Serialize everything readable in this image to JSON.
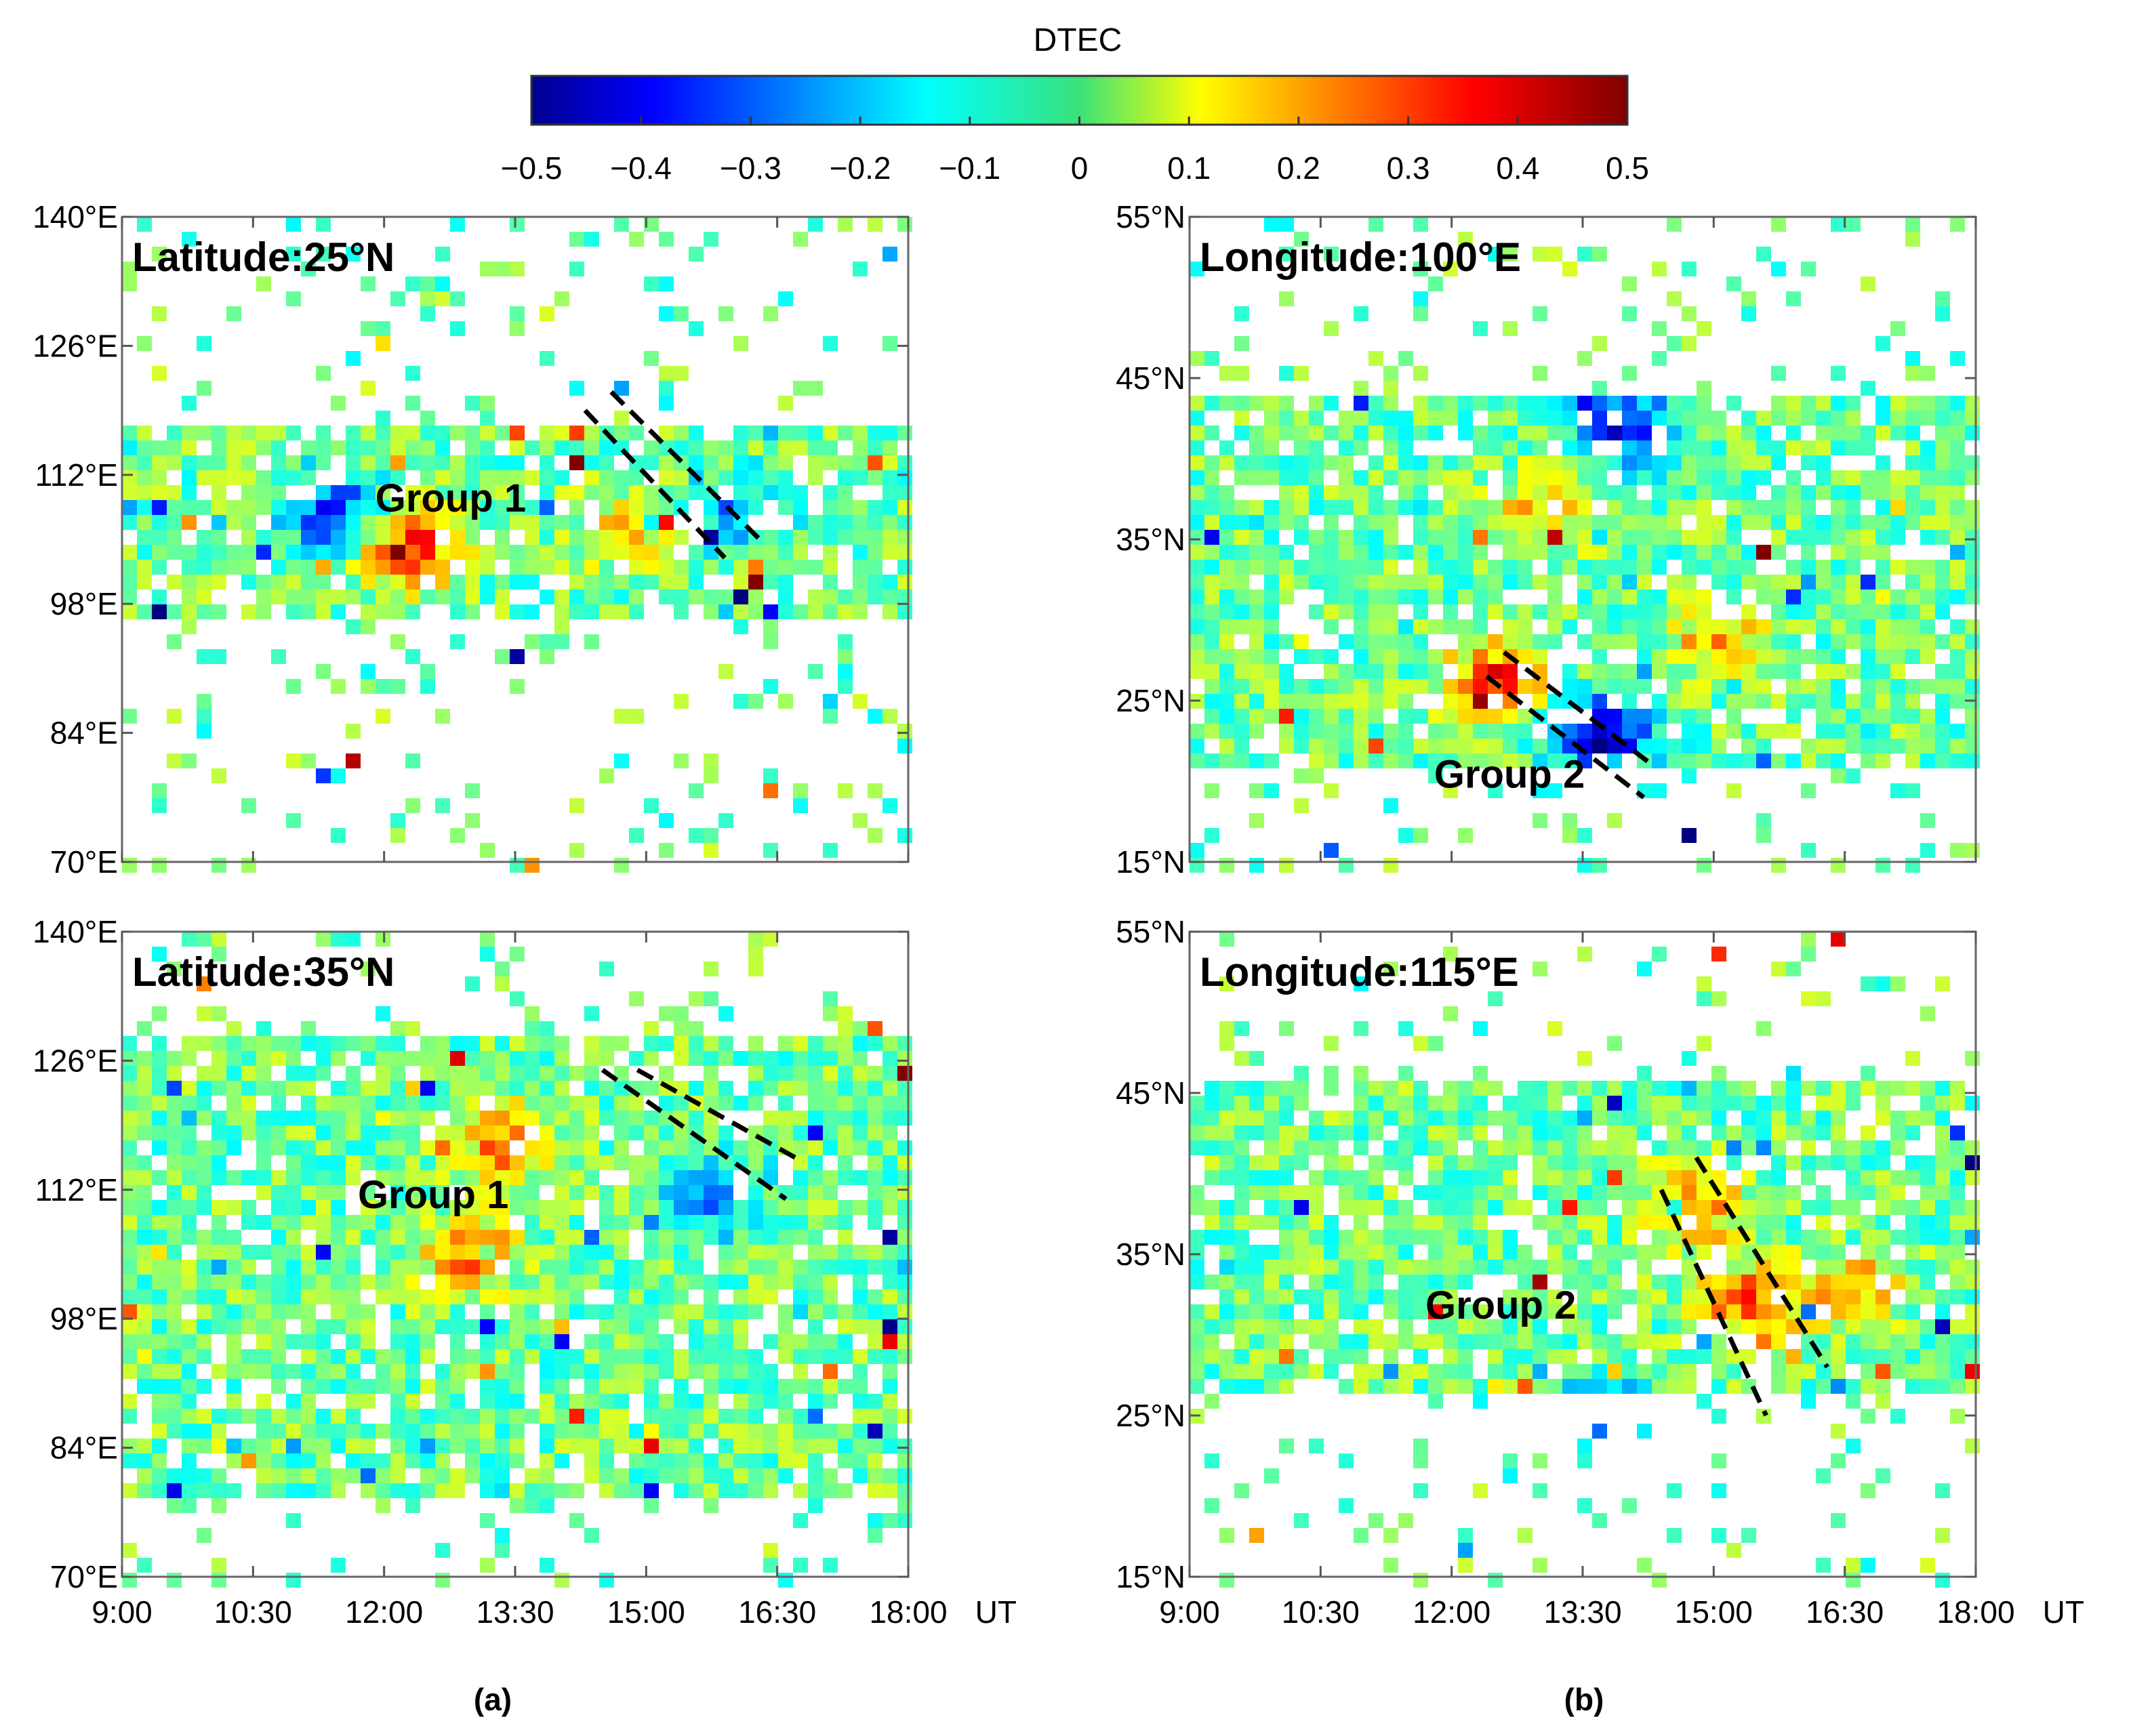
{
  "colorbar": {
    "title": "DTEC",
    "min": -0.5,
    "max": 0.5,
    "tick_labels": [
      "−0.5",
      "−0.4",
      "−0.3",
      "−0.2",
      "−0.1",
      "0",
      "0.1",
      "0.2",
      "0.3",
      "0.4",
      "0.5"
    ],
    "tick_values": [
      -0.5,
      -0.4,
      -0.3,
      -0.2,
      -0.1,
      0,
      0.1,
      0.2,
      0.3,
      0.4,
      0.5
    ],
    "colormap": "jet"
  },
  "x_axis": {
    "unit_label": "UT",
    "tick_labels": [
      "9:00",
      "10:30",
      "12:00",
      "13:30",
      "15:00",
      "16:30",
      "18:00"
    ],
    "tick_values_hours": [
      9,
      10.5,
      12,
      13.5,
      15,
      16.5,
      18
    ],
    "range_hours": [
      9,
      18
    ]
  },
  "captions": {
    "a": "(a)",
    "b": "(b)"
  },
  "chart_data": [
    {
      "id": "a-top",
      "type": "heatmap",
      "title": "Latitude:25°N",
      "annotation": "Group 1",
      "xlim": [
        9,
        18
      ],
      "ylim": [
        70,
        140
      ],
      "yticks": [
        70,
        84,
        98,
        112,
        126,
        140
      ],
      "ytick_labels": [
        "70°E",
        "84°E",
        "98°E",
        "112°E",
        "126°E",
        "140°E"
      ],
      "dense_band": [
        96,
        118
      ],
      "hotspots": [
        {
          "t": 12.3,
          "y": 104,
          "v": 0.38
        },
        {
          "t": 14.8,
          "y": 106,
          "v": 0.22
        },
        {
          "t": 11.4,
          "y": 108,
          "v": -0.32
        },
        {
          "t": 16.0,
          "y": 108,
          "v": -0.22
        }
      ],
      "fronts": [
        {
          "t": [
            14.3,
            15.9
          ],
          "y": [
            119,
            103
          ]
        },
        {
          "t": [
            14.6,
            16.3
          ],
          "y": [
            121,
            105
          ]
        }
      ]
    },
    {
      "id": "a-bottom",
      "type": "heatmap",
      "title": "Latitude:35°N",
      "annotation": "Group 1",
      "xlim": [
        9,
        18
      ],
      "ylim": [
        70,
        140
      ],
      "yticks": [
        70,
        84,
        98,
        112,
        126,
        140
      ],
      "ytick_labels": [
        "70°E",
        "84°E",
        "98°E",
        "112°E",
        "126°E",
        "140°E"
      ],
      "dense_band": [
        78,
        128
      ],
      "hotspots": [
        {
          "t": 13.3,
          "y": 117,
          "v": 0.3
        },
        {
          "t": 13.0,
          "y": 105,
          "v": 0.28
        },
        {
          "t": 15.8,
          "y": 111,
          "v": -0.2
        }
      ],
      "fronts": [
        {
          "t": [
            14.5,
            16.6
          ],
          "y": [
            125,
            111
          ]
        },
        {
          "t": [
            14.9,
            16.8
          ],
          "y": [
            125,
            115
          ]
        }
      ]
    },
    {
      "id": "b-top",
      "type": "heatmap",
      "title": "Longitude:100°E",
      "annotation": "Group 2",
      "xlim": [
        9,
        18
      ],
      "ylim": [
        15,
        55
      ],
      "yticks": [
        15,
        25,
        35,
        45,
        55
      ],
      "ytick_labels": [
        "15°N",
        "25°N",
        "35°N",
        "45°N",
        "55°N"
      ],
      "dense_band": [
        21,
        44
      ],
      "hotspots": [
        {
          "t": 12.5,
          "y": 26,
          "v": 0.38
        },
        {
          "t": 13.7,
          "y": 23,
          "v": -0.42
        },
        {
          "t": 15.0,
          "y": 29,
          "v": 0.2
        },
        {
          "t": 14.0,
          "y": 42,
          "v": -0.35
        },
        {
          "t": 13.1,
          "y": 37,
          "v": 0.22
        }
      ],
      "fronts": [
        {
          "t": [
            12.4,
            14.2
          ],
          "y": [
            26.5,
            19
          ]
        },
        {
          "t": [
            12.6,
            14.3
          ],
          "y": [
            28,
            21
          ]
        }
      ]
    },
    {
      "id": "b-bottom",
      "type": "heatmap",
      "title": "Longitude:115°E",
      "annotation": "Group 2",
      "xlim": [
        9,
        18
      ],
      "ylim": [
        15,
        55
      ],
      "yticks": [
        15,
        25,
        35,
        45,
        55
      ],
      "ytick_labels": [
        "15°N",
        "25°N",
        "35°N",
        "45°N",
        "55°N"
      ],
      "dense_band": [
        26,
        46
      ],
      "hotspots": [
        {
          "t": 14.8,
          "y": 38,
          "v": 0.28
        },
        {
          "t": 15.4,
          "y": 32,
          "v": 0.32
        },
        {
          "t": 16.6,
          "y": 33,
          "v": 0.22
        },
        {
          "t": 13.6,
          "y": 25,
          "v": -0.3
        }
      ],
      "fronts": [
        {
          "t": [
            14.4,
            15.6
          ],
          "y": [
            39,
            25
          ]
        },
        {
          "t": [
            14.8,
            16.3
          ],
          "y": [
            41,
            28
          ]
        }
      ]
    }
  ]
}
